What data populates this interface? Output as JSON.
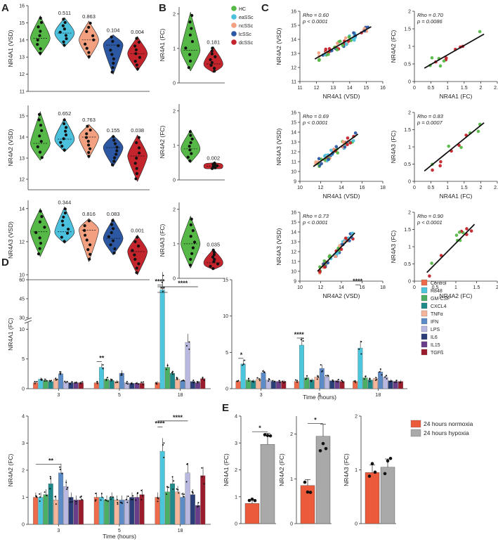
{
  "panel_labels": {
    "A": "A",
    "B": "B",
    "C": "C",
    "D": "D",
    "E": "E"
  },
  "groups": [
    "HC",
    "eaSSc",
    "ncSSc",
    "lcSSc",
    "dcSSc"
  ],
  "colors": {
    "HC": "#56b847",
    "eaSSc": "#4cc1dd",
    "ncSSc": "#f2a07f",
    "lcSSc": "#2c58a3",
    "dcSSc": "#c4242c",
    "Control": "#ed6a4a",
    "R848": "#4cc6dc",
    "GM-CSF": "#4aaf62",
    "CXCL4": "#1f8a8a",
    "TNFa": "#f4b59a",
    "IFN": "#5b8cc8",
    "LPS": "#b8b8e0",
    "IL6": "#2a3f7a",
    "IL15": "#6a3d8a",
    "TGFb": "#9b1c2c",
    "normoxia": "#ec5a3c",
    "hypoxia": "#a9a9a9"
  },
  "chart_data": [
    {
      "type": "violin",
      "panel": "A",
      "title": "",
      "ylabel": "NR4A1 (VSD)",
      "categories": [
        "HC",
        "eaSSc",
        "ncSSc",
        "lcSSc",
        "dcSSc"
      ],
      "ylim": [
        11,
        16
      ],
      "yticks": [
        11,
        12,
        13,
        14,
        15,
        16
      ],
      "medians": [
        14.1,
        14.4,
        14.0,
        13.7,
        13.2
      ],
      "ranges": [
        [
          13.1,
          15.4
        ],
        [
          13.6,
          15.3
        ],
        [
          12.9,
          15.1
        ],
        [
          12.0,
          14.3
        ],
        [
          12.2,
          14.2
        ]
      ],
      "pvalues": [
        "",
        "0.511",
        "0.863",
        "0.104",
        "0.004"
      ]
    },
    {
      "type": "violin",
      "panel": "A",
      "title": "",
      "ylabel": "NR4A2 (VSD)",
      "categories": [
        "HC",
        "eaSSc",
        "ncSSc",
        "lcSSc",
        "dcSSc"
      ],
      "ylim": [
        11.5,
        15.5
      ],
      "yticks": [
        12,
        13,
        14,
        15
      ],
      "medians": [
        13.7,
        13.9,
        14.0,
        13.5,
        13.1
      ],
      "ranges": [
        [
          12.9,
          15.2
        ],
        [
          13.3,
          14.9
        ],
        [
          13.0,
          14.6
        ],
        [
          12.6,
          14.1
        ],
        [
          11.9,
          14.1
        ]
      ],
      "pvalues": [
        "",
        "0.652",
        "0.763",
        "0.155",
        "0.038"
      ]
    },
    {
      "type": "violin",
      "panel": "A",
      "title": "",
      "ylabel": "NR4A3 (VSD)",
      "categories": [
        "HC",
        "eaSSc",
        "ncSSc",
        "lcSSc",
        "dcSSc"
      ],
      "ylim": [
        9.7,
        14.5
      ],
      "yticks": [
        10,
        12,
        14
      ],
      "medians": [
        12.6,
        12.6,
        12.7,
        12.2,
        11.4
      ],
      "ranges": [
        [
          11.1,
          14.0
        ],
        [
          11.9,
          14.1
        ],
        [
          10.8,
          13.4
        ],
        [
          11.2,
          13.4
        ],
        [
          10.0,
          12.4
        ]
      ],
      "pvalues": [
        "",
        "0.344",
        "0.816",
        "0.083",
        "0.001"
      ]
    },
    {
      "type": "violin",
      "panel": "B",
      "ylabel": "NR4A1 (FC)",
      "categories": [
        "HC",
        "dcSSc"
      ],
      "ylim": [
        0,
        2.2
      ],
      "yticks": [
        0,
        1,
        2
      ],
      "medians": [
        0.95,
        0.55
      ],
      "ranges": [
        [
          0.35,
          2.05
        ],
        [
          0.3,
          1.05
        ]
      ],
      "pvalues": [
        "",
        "0.181"
      ]
    },
    {
      "type": "violin",
      "panel": "B",
      "ylabel": "NR4A2 (FC)",
      "categories": [
        "HC",
        "dcSSc"
      ],
      "ylim": [
        0,
        2.2
      ],
      "yticks": [
        0,
        1,
        2
      ],
      "medians": [
        0.9,
        0.4
      ],
      "ranges": [
        [
          0.5,
          1.45
        ],
        [
          0.32,
          0.5
        ]
      ],
      "pvalues": [
        "",
        "0.002"
      ]
    },
    {
      "type": "violin",
      "panel": "B",
      "ylabel": "NR4A3 (FC)",
      "categories": [
        "HC",
        "dcSSc"
      ],
      "ylim": [
        0,
        2.2
      ],
      "yticks": [
        0,
        1,
        2
      ],
      "medians": [
        1.0,
        0.45
      ],
      "ranges": [
        [
          0.3,
          1.8
        ],
        [
          0.25,
          0.85
        ]
      ],
      "pvalues": [
        "",
        "0.035"
      ]
    },
    {
      "type": "scatter",
      "panel": "C",
      "xlabel": "NR4A1 (VSD)",
      "ylabel": "NR4A2 (VSD)",
      "xlim": [
        11,
        16
      ],
      "ylim": [
        11,
        16
      ],
      "xticks": [
        11,
        12,
        13,
        14,
        15,
        16
      ],
      "yticks": [
        11,
        12,
        13,
        14,
        15,
        16
      ],
      "fit": [
        [
          11.9,
          12.6
        ],
        [
          15.3,
          14.9
        ]
      ],
      "stat_rho": "Rho = 0.60",
      "stat_p": "p < 0.0001"
    },
    {
      "type": "scatter",
      "panel": "C",
      "xlabel": "NR4A1 (FC)",
      "ylabel": "NR4A2 (FC)",
      "xlim": [
        0,
        2.5
      ],
      "ylim": [
        0,
        2
      ],
      "xticks": [
        0.0,
        0.5,
        1.0,
        1.5,
        2.0,
        2.5
      ],
      "yticks": [
        0.0,
        0.5,
        1.0,
        1.5,
        2.0
      ],
      "fit": [
        [
          0.3,
          0.38
        ],
        [
          2.1,
          1.35
        ]
      ],
      "stat_rho": "Rho = 0.70",
      "stat_p": "p = 0.0086"
    },
    {
      "type": "scatter",
      "panel": "C",
      "xlabel": "NR4A1 (VSD)",
      "ylabel": "NR4A3 (VSD)",
      "xlim": [
        10,
        18
      ],
      "ylim": [
        9,
        16
      ],
      "xticks": [
        10,
        12,
        14,
        16,
        18
      ],
      "yticks": [
        9,
        10,
        11,
        12,
        13,
        14,
        15,
        16
      ],
      "fit": [
        [
          11.3,
          10.5
        ],
        [
          15.6,
          13.8
        ]
      ],
      "stat_rho": "Rho = 0.69",
      "stat_p": "p < 0.0001"
    },
    {
      "type": "scatter",
      "panel": "C",
      "xlabel": "NR4A1 (FC)",
      "ylabel": "NR4A3 (FC)",
      "xlim": [
        0,
        2.5
      ],
      "ylim": [
        0,
        2
      ],
      "xticks": [
        0.0,
        0.5,
        1.0,
        1.5,
        2.0,
        2.5
      ],
      "yticks": [
        0.0,
        0.5,
        1.0,
        1.5,
        2.0
      ],
      "fit": [
        [
          0.3,
          0.3
        ],
        [
          2.1,
          1.7
        ]
      ],
      "stat_rho": "Rho = 0.83",
      "stat_p": "p = 0.0007"
    },
    {
      "type": "scatter",
      "panel": "C",
      "xlabel": "NR4A2 (VSD)",
      "ylabel": "NR4A3 (VSD)",
      "xlim": [
        10,
        18
      ],
      "ylim": [
        9,
        16
      ],
      "xticks": [
        10,
        12,
        14,
        16,
        18
      ],
      "yticks": [
        9,
        10,
        11,
        12,
        13,
        14,
        15,
        16
      ],
      "fit": [
        [
          11.7,
          10.0
        ],
        [
          15.3,
          13.9
        ]
      ],
      "stat_rho": "Rho = 0.73",
      "stat_p": "p < 0.0001"
    },
    {
      "type": "scatter",
      "panel": "C",
      "xlabel": "NR4A2 (FC)",
      "ylabel": "NR4A3 (FC)",
      "xlim": [
        0,
        2
      ],
      "ylim": [
        0,
        2
      ],
      "xticks": [
        0.0,
        0.5,
        1.0,
        1.5,
        2.0
      ],
      "yticks": [
        0.0,
        0.5,
        1.0,
        1.5,
        2.0
      ],
      "fit": [
        [
          0.3,
          0.25
        ],
        [
          1.45,
          1.65
        ]
      ],
      "stat_rho": "Rho = 0.90",
      "stat_p": "p < 0.0001"
    },
    {
      "type": "bar",
      "panel": "D",
      "ylabel": "NR4A1 (FC)",
      "xlabel": "",
      "categories": [
        "3",
        "5",
        "18"
      ],
      "series_names": [
        "Control",
        "R848",
        "GM-CSF",
        "CXCL4",
        "TNFα",
        "IFN",
        "LPS",
        "IL6",
        "IL15",
        "TGFß"
      ],
      "values": [
        [
          1.0,
          1.6,
          1.4,
          1.2,
          1.6,
          2.5,
          1.1,
          1.0,
          1.0,
          1.0
        ],
        [
          1.0,
          3.6,
          1.6,
          1.4,
          1.2,
          2.6,
          1.0,
          0.9,
          0.9,
          0.9
        ],
        [
          1.0,
          52,
          3.6,
          2.6,
          1.6,
          1.3,
          7.8,
          1.2,
          1.0,
          1.7
        ]
      ],
      "yticks": [
        "0",
        "5",
        "10",
        "30",
        "45",
        "60"
      ],
      "break": "axis break between 10 and 30",
      "significance": [
        {
          "label": "**",
          "hour": "5"
        },
        {
          "label": "****",
          "hour": "18"
        },
        {
          "label": "**",
          "hour": "18"
        },
        {
          "label": "****",
          "hour": "18"
        }
      ]
    },
    {
      "type": "bar",
      "panel": "D",
      "ylabel": "",
      "xlabel": "Time (hours)",
      "categories": [
        "3",
        "5",
        "18"
      ],
      "series_names": [
        "Control",
        "R848",
        "GM-CSF",
        "CXCL4",
        "TNFα",
        "IFN",
        "LPS",
        "IL6",
        "IL15",
        "TGFß"
      ],
      "values": [
        [
          1.0,
          3.4,
          1.2,
          1.1,
          1.3,
          2.2,
          1.2,
          1.0,
          1.0,
          1.0
        ],
        [
          1.0,
          6.0,
          1.5,
          1.2,
          1.6,
          2.8,
          1.6,
          1.1,
          1.1,
          1.0
        ],
        [
          1.0,
          5.6,
          1.5,
          1.2,
          1.4,
          2.3,
          1.6,
          1.1,
          1.0,
          1.0
        ]
      ],
      "ylim": [
        0,
        15
      ],
      "yticks": [
        "0",
        "5",
        "10",
        "15"
      ],
      "significance": [
        {
          "label": "*",
          "hour": "3"
        },
        {
          "label": "****",
          "hour": "5"
        },
        {
          "label": "****",
          "hour": "18"
        }
      ]
    },
    {
      "type": "bar",
      "panel": "D",
      "ylabel": "NR4A2 (FC)",
      "xlabel": "Time (hours)",
      "categories": [
        "3",
        "5",
        "18"
      ],
      "series_names": [
        "Control",
        "R848",
        "GM-CSF",
        "CXCL4",
        "TNFα",
        "IFN",
        "LPS",
        "IL6",
        "IL15",
        "TGFß"
      ],
      "values": [
        [
          1.0,
          1.0,
          1.1,
          1.5,
          0.9,
          1.9,
          1.4,
          1.0,
          0.9,
          0.9
        ],
        [
          1.0,
          1.0,
          0.9,
          1.0,
          0.9,
          0.9,
          0.9,
          1.0,
          1.0,
          1.1
        ],
        [
          1.0,
          2.7,
          1.2,
          1.5,
          1.2,
          1.0,
          1.9,
          1.1,
          0.7,
          1.8
        ]
      ],
      "ylim": [
        0,
        4
      ],
      "yticks": [
        "0",
        "1",
        "2",
        "3",
        "4"
      ],
      "significance": [
        {
          "label": "**",
          "hour": "3"
        },
        {
          "label": "****",
          "hour": "18"
        },
        {
          "label": "****",
          "hour": "18"
        }
      ]
    },
    {
      "type": "bar",
      "panel": "E",
      "ylabel": "NR4A1 (FC)",
      "categories": [
        "24 hours normoxia",
        "24 hours hypoxia"
      ],
      "values": [
        0.75,
        2.95
      ],
      "ylim": [
        0,
        4
      ],
      "yticks": [
        "0",
        "1",
        "2",
        "3",
        "4"
      ],
      "significance": "*"
    },
    {
      "type": "bar",
      "panel": "E",
      "ylabel": "NR4A2 (FC)",
      "categories": [
        "24 hours normoxia",
        "24 hours hypoxia"
      ],
      "values": [
        0.85,
        1.95
      ],
      "ylim": [
        0,
        2.4
      ],
      "yticks": [
        "0",
        "1",
        "2"
      ],
      "significance": "*"
    },
    {
      "type": "bar",
      "panel": "E",
      "ylabel": "NR4A3 (FC)",
      "categories": [
        "24 hours normoxia",
        "24 hours hypoxia"
      ],
      "values": [
        0.95,
        1.05
      ],
      "ylim": [
        0,
        2
      ],
      "yticks": [
        "0",
        "1",
        "2"
      ],
      "significance": ""
    }
  ],
  "legend_B": [
    "HC",
    "eaSSc",
    "ncSSc",
    "lcSSc",
    "dcSSc"
  ],
  "legend_D": [
    "Control",
    "R848",
    "GM-CSF",
    "CXCL4",
    "TNFα",
    "IFN",
    "LPS",
    "IL6",
    "IL15",
    "TGFß"
  ],
  "legend_E": [
    "24 hours normoxia",
    "24 hours hypoxia"
  ],
  "time_label": "Time (hours)"
}
